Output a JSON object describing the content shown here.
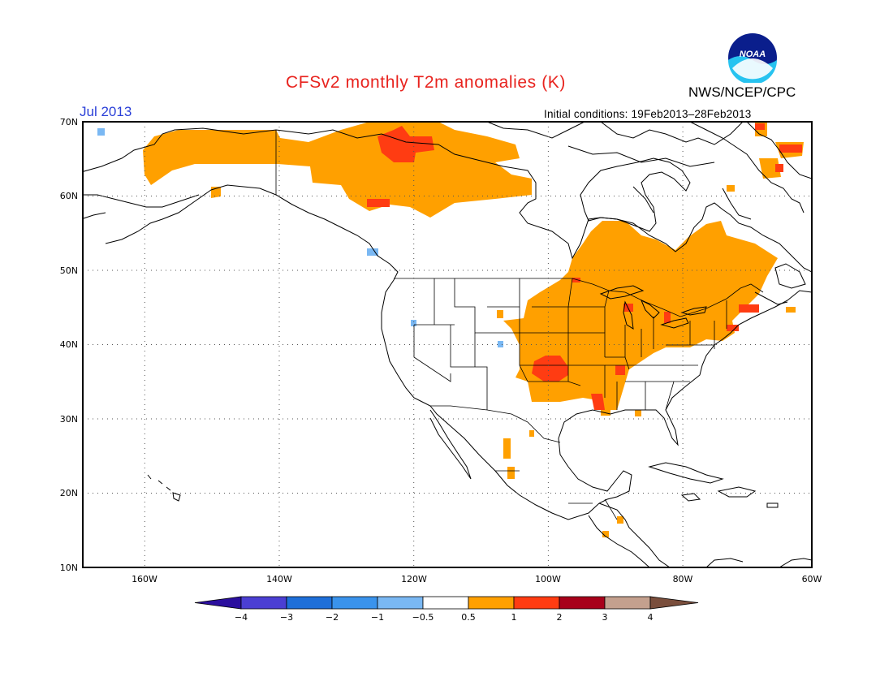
{
  "title": "CFSv2 monthly T2m anomalies (K)",
  "agency": "NWS/NCEP/CPC",
  "logo_text": "NOAA",
  "target_month": "Jul 2013",
  "initial_conditions": "Initial conditions: 19Feb2013–28Feb2013",
  "map": {
    "lon_range": [
      -172,
      -60
    ],
    "lat_range": [
      10,
      70
    ],
    "lat_labels": [
      "70N",
      "60N",
      "50N",
      "40N",
      "30N",
      "20N",
      "10N"
    ],
    "lat_values": [
      70,
      60,
      50,
      40,
      30,
      20,
      10
    ],
    "lon_labels": [
      "160W",
      "140W",
      "120W",
      "100W",
      "80W",
      "60W"
    ],
    "lon_values": [
      -160,
      -140,
      -120,
      -100,
      -80,
      -60
    ],
    "grid": "dotted"
  },
  "colorbar": {
    "labels": [
      "−4",
      "−3",
      "−2",
      "−1",
      "−0.5",
      "0.5",
      "1",
      "2",
      "3",
      "4"
    ],
    "colors": [
      "#2b0f9e",
      "#4b3fd3",
      "#1e6fd9",
      "#3a93ec",
      "#7ab8f3",
      "#ffffff",
      "#ffa000",
      "#ff3c12",
      "#a8001a",
      "#c4a08e",
      "#7a4e3c"
    ]
  },
  "anomaly_colors": {
    "warm_05_1": "#ffa000",
    "warm_1_2": "#ff3c12",
    "warm_2_3": "#a8001a",
    "cool_m1_m05": "#7ab8f3"
  }
}
